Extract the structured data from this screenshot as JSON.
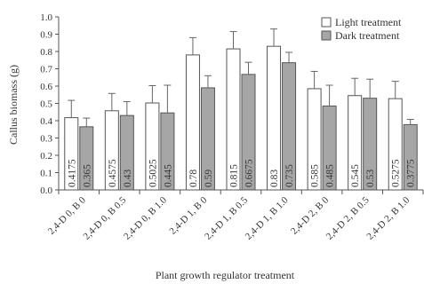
{
  "chart_data": {
    "type": "bar",
    "title": "",
    "xlabel": "Plant growth regulator treatment",
    "ylabel": "Callus biomass (g)",
    "ylim": [
      0,
      1.0
    ],
    "yticks": [
      "0.0",
      "0.1",
      "0.2",
      "0.3",
      "0.4",
      "0.5",
      "0.6",
      "0.7",
      "0.8",
      "0.9",
      "1.0"
    ],
    "categories": [
      "2,4-D 0, B 0",
      "2,4-D 0, B 0.5",
      "2,4-D 0, B 1.0",
      "2,4-D 1, B 0",
      "2,4-D 1, B 0.5",
      "2,4-D 1, B 1.0",
      "2,4-D 2, B 0",
      "2,4-D 2, B 0.5",
      "2,4-D 2, B 1.0"
    ],
    "series": [
      {
        "name": "Light treatment",
        "color": "#ffffff",
        "values": [
          0.4175,
          0.4575,
          0.5025,
          0.78,
          0.815,
          0.83,
          0.585,
          0.545,
          0.5275
        ],
        "labels": [
          "0.4175",
          "0.4575",
          "0.5025",
          "0.78",
          "0.815",
          "0.83",
          "0.585",
          "0.545",
          "0.5275"
        ],
        "errors": [
          0.1,
          0.1,
          0.1,
          0.1,
          0.1,
          0.1,
          0.1,
          0.1,
          0.1
        ]
      },
      {
        "name": "Dark treatment",
        "color": "#a6a6a6",
        "values": [
          0.365,
          0.43,
          0.445,
          0.59,
          0.6675,
          0.735,
          0.485,
          0.53,
          0.3775
        ],
        "labels": [
          "0.365",
          "0.43",
          "0.445",
          "0.59",
          "0.6675",
          "0.735",
          "0.485",
          "0.53",
          "0.3775"
        ],
        "errors": [
          0.05,
          0.08,
          0.16,
          0.07,
          0.07,
          0.06,
          0.12,
          0.11,
          0.03
        ]
      }
    ],
    "legend_position": "top-right",
    "grid": false
  }
}
